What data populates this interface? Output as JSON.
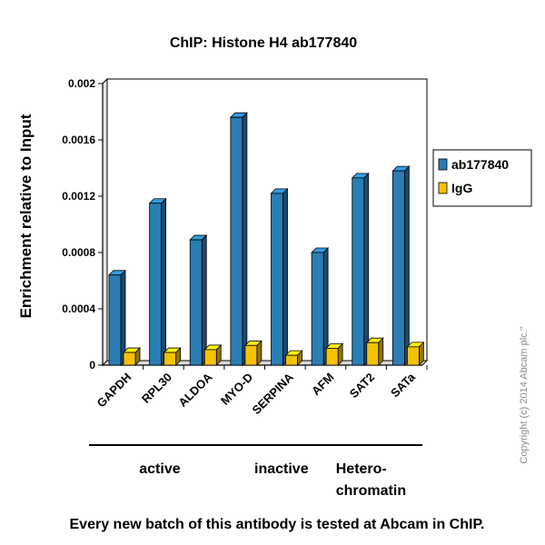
{
  "chart_data": {
    "type": "bar",
    "title": "ChIP: Histone H4 ab177840",
    "xlabel": "",
    "ylabel": "Enrichment relative to Input",
    "categories": [
      "GAPDH",
      "RPL30",
      "ALDOA",
      "MYO-D",
      "SERPINA",
      "AFM",
      "SAT2",
      "SATa"
    ],
    "series": [
      {
        "name": "ab177840",
        "color": "#2a7db5",
        "values": [
          0.00064,
          0.00115,
          0.00089,
          0.00176,
          0.00122,
          0.0008,
          0.00133,
          0.00138
        ]
      },
      {
        "name": "IgG",
        "color": "#f5c200",
        "values": [
          9e-05,
          9e-05,
          0.00011,
          0.00014,
          7e-05,
          0.00012,
          0.00016,
          0.00013
        ]
      }
    ],
    "ylim": [
      0,
      0.002
    ],
    "yticks": [
      0,
      0.0004,
      0.0008,
      0.0012,
      0.0016,
      0.002
    ],
    "ytick_labels": [
      "0",
      "0.0004",
      "0.0008",
      "0.0012",
      "0.0016",
      "0.002"
    ],
    "grid": true,
    "legend_position": "right",
    "groups": [
      {
        "label": "active",
        "categories": [
          "GAPDH",
          "RPL30",
          "ALDOA"
        ]
      },
      {
        "label": "inactive",
        "categories": [
          "MYO-D",
          "SERPINA",
          "AFM"
        ]
      },
      {
        "label_lines": [
          "Hetero-",
          "chromatin"
        ],
        "categories": [
          "SAT2",
          "SATa"
        ]
      }
    ]
  },
  "footer": "Every new batch of this antibody is tested at Abcam in ChIP.",
  "copyright": "Copyright (c) 2014 Abcam plc.\""
}
